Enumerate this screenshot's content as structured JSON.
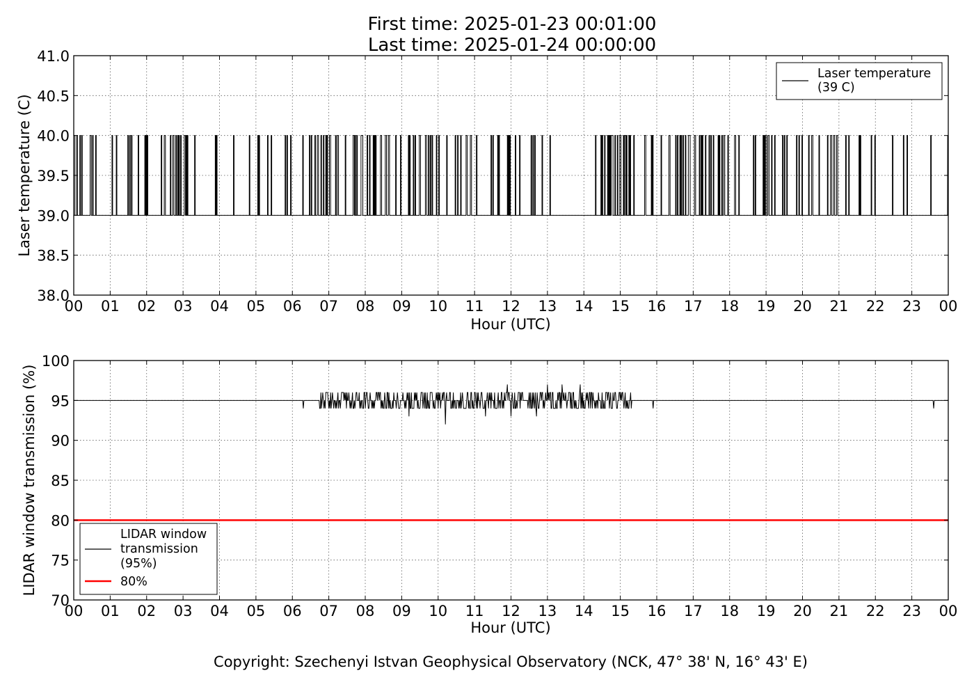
{
  "header": {
    "title_line1": "First time: 2025-01-23 00:01:00",
    "title_line2": "Last time: 2025-01-24 00:00:00"
  },
  "copyright": "Copyright: Szechenyi Istvan Geophysical Observatory (NCK, 47° 38' N, 16° 43' E)",
  "colors": {
    "line": "#000000",
    "threshold": "#ff0000"
  },
  "chart_data": [
    {
      "type": "line",
      "xlabel": "Hour (UTC)",
      "ylabel": "Laser temperature (C)",
      "xlim": [
        0,
        24
      ],
      "ylim": [
        38.0,
        41.0
      ],
      "x_tick_labels": [
        "00",
        "01",
        "02",
        "03",
        "04",
        "05",
        "06",
        "07",
        "08",
        "09",
        "10",
        "11",
        "12",
        "13",
        "14",
        "15",
        "16",
        "17",
        "18",
        "19",
        "20",
        "21",
        "22",
        "23",
        "00"
      ],
      "y_ticks": [
        38.0,
        38.5,
        39.0,
        39.5,
        40.0,
        40.5,
        41.0
      ],
      "y_tick_labels": [
        "38.0",
        "38.5",
        "39.0",
        "39.5",
        "40.0",
        "40.5",
        "41.0"
      ],
      "grid": true,
      "legend_position": "upper right",
      "legend": [
        "Laser temperature",
        "(39 C)"
      ],
      "series": [
        {
          "name": "Laser temperature (39 C)",
          "color": "#000000",
          "baseline": 39.0,
          "spike_value": 40.0,
          "segments": [
            {
              "start": 0.0,
              "end": 3.1,
              "values": [
                39,
                40
              ],
              "density": "high"
            },
            {
              "start": 3.1,
              "end": 6.0,
              "values": [
                39,
                40
              ],
              "density": "medium"
            },
            {
              "start": 6.0,
              "end": 6.5,
              "values": [
                39,
                40
              ],
              "density": "low"
            },
            {
              "start": 6.5,
              "end": 10.2,
              "values": [
                39,
                40
              ],
              "density": "very high"
            },
            {
              "start": 10.2,
              "end": 13.2,
              "values": [
                39,
                40
              ],
              "density": "high"
            },
            {
              "start": 13.2,
              "end": 14.1,
              "values": [
                39
              ],
              "density": "none"
            },
            {
              "start": 14.1,
              "end": 15.4,
              "values": [
                39,
                40
              ],
              "density": "very high"
            },
            {
              "start": 15.4,
              "end": 21.0,
              "values": [
                39,
                40
              ],
              "density": "high"
            },
            {
              "start": 21.0,
              "end": 23.2,
              "values": [
                39,
                40
              ],
              "density": "medium"
            },
            {
              "start": 23.2,
              "end": 24.0,
              "values": [
                39,
                40
              ],
              "density": "low"
            }
          ]
        }
      ]
    },
    {
      "type": "line",
      "xlabel": "Hour (UTC)",
      "ylabel": "LIDAR window transmission (%)",
      "xlim": [
        0,
        24
      ],
      "ylim": [
        70,
        100
      ],
      "x_tick_labels": [
        "00",
        "01",
        "02",
        "03",
        "04",
        "05",
        "06",
        "07",
        "08",
        "09",
        "10",
        "11",
        "12",
        "13",
        "14",
        "15",
        "16",
        "17",
        "18",
        "19",
        "20",
        "21",
        "22",
        "23",
        "00"
      ],
      "y_ticks": [
        70,
        75,
        80,
        85,
        90,
        95,
        100
      ],
      "y_tick_labels": [
        "70",
        "75",
        "80",
        "85",
        "90",
        "95",
        "100"
      ],
      "grid": true,
      "legend_position": "lower left",
      "legend": [
        [
          "LIDAR window",
          "transmission",
          "(95%)"
        ],
        [
          "80%"
        ]
      ],
      "series": [
        {
          "name": "LIDAR window transmission (95%)",
          "color": "#000000",
          "baseline": 95,
          "noisy_interval": [
            6.75,
            15.3
          ],
          "noise_range": [
            93,
            97
          ],
          "dips": [
            {
              "x": 6.3,
              "y": 94
            },
            {
              "x": 9.2,
              "y": 93
            },
            {
              "x": 10.2,
              "y": 92
            },
            {
              "x": 11.3,
              "y": 93
            },
            {
              "x": 12.0,
              "y": 93
            },
            {
              "x": 12.7,
              "y": 93
            },
            {
              "x": 15.9,
              "y": 94
            },
            {
              "x": 23.6,
              "y": 94
            }
          ],
          "peaks": [
            {
              "x": 11.9,
              "y": 97
            },
            {
              "x": 13.0,
              "y": 97
            },
            {
              "x": 13.4,
              "y": 97
            },
            {
              "x": 13.9,
              "y": 97
            }
          ]
        },
        {
          "name": "80%",
          "color": "#ff0000",
          "constant": 80
        }
      ]
    }
  ]
}
